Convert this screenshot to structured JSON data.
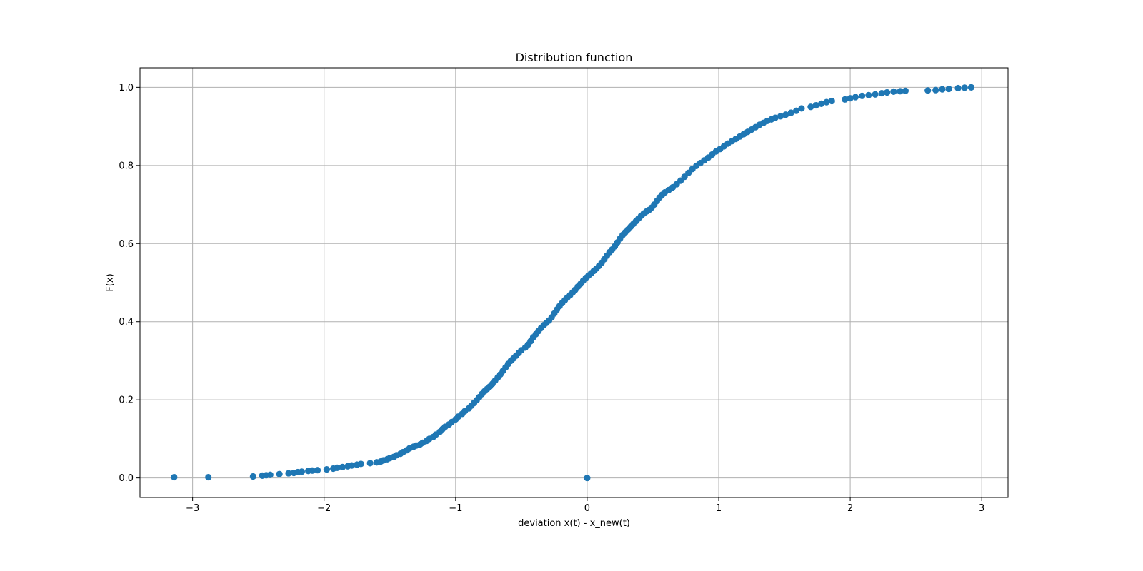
{
  "chart_data": {
    "type": "scatter",
    "title": "Distribution function",
    "xlabel": "deviation x(t) - x_new(t)",
    "ylabel": "F(x)",
    "xlim": [
      -3.4,
      3.2
    ],
    "ylim": [
      -0.05,
      1.05
    ],
    "xticks": [
      -3,
      -2,
      -1,
      0,
      1,
      2,
      3
    ],
    "xtick_labels": [
      "−3",
      "−2",
      "−1",
      "0",
      "1",
      "2",
      "3"
    ],
    "yticks": [
      0.0,
      0.2,
      0.4,
      0.6,
      0.8,
      1.0
    ],
    "ytick_labels": [
      "0.0",
      "0.2",
      "0.4",
      "0.6",
      "0.8",
      "1.0"
    ],
    "grid": true,
    "marker_color": "#1f77b4",
    "series": [
      {
        "points": [
          [
            -3.14,
            0.002
          ],
          [
            -2.88,
            0.002
          ],
          [
            0.0,
            0.0
          ],
          [
            -2.54,
            0.004
          ],
          [
            -2.47,
            0.006
          ],
          [
            -2.44,
            0.007
          ],
          [
            -2.41,
            0.008
          ],
          [
            -2.34,
            0.01
          ],
          [
            -2.27,
            0.012
          ],
          [
            -2.23,
            0.013
          ],
          [
            -2.2,
            0.015
          ],
          [
            -2.17,
            0.016
          ],
          [
            -2.12,
            0.018
          ],
          [
            -2.09,
            0.019
          ],
          [
            -2.05,
            0.02
          ],
          [
            -1.98,
            0.022
          ],
          [
            -1.93,
            0.024
          ],
          [
            -1.9,
            0.026
          ],
          [
            -1.86,
            0.028
          ],
          [
            -1.82,
            0.03
          ],
          [
            -1.79,
            0.032
          ],
          [
            -1.75,
            0.034
          ],
          [
            -1.72,
            0.036
          ],
          [
            -1.65,
            0.038
          ],
          [
            -1.6,
            0.04
          ],
          [
            -1.57,
            0.042
          ],
          [
            -1.55,
            0.045
          ],
          [
            -1.52,
            0.048
          ],
          [
            -1.5,
            0.051
          ],
          [
            -1.47,
            0.054
          ],
          [
            -1.45,
            0.058
          ],
          [
            -1.42,
            0.062
          ],
          [
            -1.4,
            0.066
          ],
          [
            -1.37,
            0.071
          ],
          [
            -1.35,
            0.076
          ],
          [
            -1.32,
            0.08
          ],
          [
            -1.3,
            0.083
          ],
          [
            -1.27,
            0.086
          ],
          [
            -1.25,
            0.09
          ],
          [
            -1.22,
            0.095
          ],
          [
            -1.2,
            0.1
          ],
          [
            -1.17,
            0.105
          ],
          [
            -1.15,
            0.111
          ],
          [
            -1.12,
            0.118
          ],
          [
            -1.1,
            0.125
          ],
          [
            -1.08,
            0.131
          ],
          [
            -1.05,
            0.137
          ],
          [
            -1.03,
            0.143
          ],
          [
            -1.0,
            0.15
          ],
          [
            -0.98,
            0.157
          ],
          [
            -0.95,
            0.164
          ],
          [
            -0.93,
            0.171
          ],
          [
            -0.9,
            0.178
          ],
          [
            -0.88,
            0.185
          ],
          [
            -0.86,
            0.192
          ],
          [
            -0.84,
            0.199
          ],
          [
            -0.82,
            0.207
          ],
          [
            -0.8,
            0.215
          ],
          [
            -0.78,
            0.222
          ],
          [
            -0.76,
            0.228
          ],
          [
            -0.74,
            0.234
          ],
          [
            -0.72,
            0.241
          ],
          [
            -0.7,
            0.249
          ],
          [
            -0.68,
            0.257
          ],
          [
            -0.66,
            0.265
          ],
          [
            -0.64,
            0.274
          ],
          [
            -0.62,
            0.283
          ],
          [
            -0.6,
            0.292
          ],
          [
            -0.58,
            0.3
          ],
          [
            -0.56,
            0.306
          ],
          [
            -0.54,
            0.313
          ],
          [
            -0.52,
            0.32
          ],
          [
            -0.5,
            0.327
          ],
          [
            -0.47,
            0.334
          ],
          [
            -0.45,
            0.341
          ],
          [
            -0.43,
            0.35
          ],
          [
            -0.41,
            0.36
          ],
          [
            -0.39,
            0.368
          ],
          [
            -0.37,
            0.376
          ],
          [
            -0.35,
            0.384
          ],
          [
            -0.33,
            0.391
          ],
          [
            -0.31,
            0.397
          ],
          [
            -0.29,
            0.403
          ],
          [
            -0.27,
            0.411
          ],
          [
            -0.25,
            0.421
          ],
          [
            -0.23,
            0.431
          ],
          [
            -0.21,
            0.44
          ],
          [
            -0.19,
            0.448
          ],
          [
            -0.17,
            0.455
          ],
          [
            -0.15,
            0.462
          ],
          [
            -0.13,
            0.468
          ],
          [
            -0.11,
            0.475
          ],
          [
            -0.09,
            0.482
          ],
          [
            -0.07,
            0.49
          ],
          [
            -0.05,
            0.497
          ],
          [
            -0.03,
            0.505
          ],
          [
            -0.01,
            0.512
          ],
          [
            0.01,
            0.518
          ],
          [
            0.03,
            0.524
          ],
          [
            0.05,
            0.53
          ],
          [
            0.07,
            0.536
          ],
          [
            0.09,
            0.543
          ],
          [
            0.11,
            0.551
          ],
          [
            0.13,
            0.56
          ],
          [
            0.15,
            0.569
          ],
          [
            0.17,
            0.578
          ],
          [
            0.19,
            0.585
          ],
          [
            0.21,
            0.593
          ],
          [
            0.23,
            0.603
          ],
          [
            0.25,
            0.613
          ],
          [
            0.27,
            0.622
          ],
          [
            0.29,
            0.629
          ],
          [
            0.31,
            0.636
          ],
          [
            0.33,
            0.643
          ],
          [
            0.35,
            0.65
          ],
          [
            0.37,
            0.657
          ],
          [
            0.39,
            0.664
          ],
          [
            0.41,
            0.671
          ],
          [
            0.43,
            0.677
          ],
          [
            0.45,
            0.682
          ],
          [
            0.47,
            0.686
          ],
          [
            0.49,
            0.692
          ],
          [
            0.51,
            0.7
          ],
          [
            0.53,
            0.709
          ],
          [
            0.55,
            0.718
          ],
          [
            0.57,
            0.725
          ],
          [
            0.59,
            0.731
          ],
          [
            0.62,
            0.737
          ],
          [
            0.65,
            0.744
          ],
          [
            0.68,
            0.752
          ],
          [
            0.71,
            0.761
          ],
          [
            0.74,
            0.771
          ],
          [
            0.77,
            0.781
          ],
          [
            0.8,
            0.791
          ],
          [
            0.83,
            0.799
          ],
          [
            0.86,
            0.806
          ],
          [
            0.89,
            0.813
          ],
          [
            0.92,
            0.82
          ],
          [
            0.95,
            0.828
          ],
          [
            0.98,
            0.836
          ],
          [
            1.01,
            0.842
          ],
          [
            1.04,
            0.849
          ],
          [
            1.07,
            0.856
          ],
          [
            1.1,
            0.862
          ],
          [
            1.13,
            0.868
          ],
          [
            1.16,
            0.874
          ],
          [
            1.19,
            0.88
          ],
          [
            1.22,
            0.886
          ],
          [
            1.25,
            0.892
          ],
          [
            1.28,
            0.898
          ],
          [
            1.31,
            0.904
          ],
          [
            1.34,
            0.909
          ],
          [
            1.37,
            0.914
          ],
          [
            1.4,
            0.918
          ],
          [
            1.43,
            0.922
          ],
          [
            1.47,
            0.926
          ],
          [
            1.51,
            0.93
          ],
          [
            1.55,
            0.935
          ],
          [
            1.59,
            0.94
          ],
          [
            1.63,
            0.946
          ],
          [
            1.7,
            0.95
          ],
          [
            1.74,
            0.954
          ],
          [
            1.78,
            0.958
          ],
          [
            1.82,
            0.962
          ],
          [
            1.86,
            0.965
          ],
          [
            1.96,
            0.969
          ],
          [
            2.0,
            0.972
          ],
          [
            2.04,
            0.975
          ],
          [
            2.09,
            0.978
          ],
          [
            2.14,
            0.98
          ],
          [
            2.19,
            0.982
          ],
          [
            2.24,
            0.985
          ],
          [
            2.28,
            0.987
          ],
          [
            2.33,
            0.989
          ],
          [
            2.38,
            0.99
          ],
          [
            2.42,
            0.991
          ],
          [
            2.59,
            0.992
          ],
          [
            2.65,
            0.993
          ],
          [
            2.7,
            0.995
          ],
          [
            2.75,
            0.996
          ],
          [
            2.82,
            0.998
          ],
          [
            2.87,
            0.999
          ],
          [
            2.92,
            1.0
          ]
        ]
      }
    ]
  }
}
